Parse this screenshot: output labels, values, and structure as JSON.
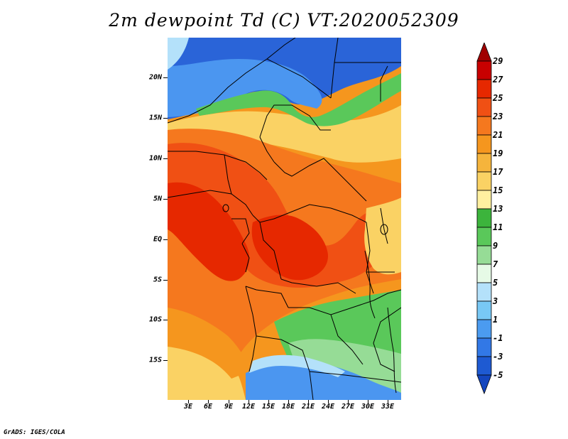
{
  "title": "2m dewpoint Td (C) VT:2020052309",
  "footer": "GrADS: IGES/COLA",
  "lat_labels": [
    "20N",
    "15N",
    "10N",
    "5N",
    "EQ",
    "5S",
    "10S",
    "15S"
  ],
  "lon_labels": [
    "3E",
    "6E",
    "9E",
    "12E",
    "15E",
    "18E",
    "21E",
    "24E",
    "27E",
    "30E",
    "33E"
  ],
  "colorbar": {
    "labels": [
      "29",
      "27",
      "25",
      "23",
      "21",
      "19",
      "17",
      "15",
      "13",
      "11",
      "9",
      "7",
      "5",
      "3",
      "1",
      "-1",
      "-3",
      "-5"
    ],
    "colors": [
      "#a00000",
      "#c80000",
      "#e62800",
      "#f05014",
      "#f5781e",
      "#f5961e",
      "#f5b43c",
      "#fad264",
      "#fff0a0",
      "#3cb43c",
      "#5ac85a",
      "#96dc96",
      "#e6fae6",
      "#b4e1fa",
      "#78c8f5",
      "#4b9bf0",
      "#3278e6",
      "#1e5ad2",
      "#1446be"
    ]
  },
  "map_colors": {
    "deep_blue": "#2a64d8",
    "blue": "#4b96f0",
    "light_blue": "#b4e1fa",
    "green": "#5ac85a",
    "light_green": "#96dc96",
    "yellow": "#fad264",
    "orange": "#f5961e",
    "dark_orange": "#f5781e",
    "red_orange": "#f05014",
    "red": "#e62800"
  }
}
